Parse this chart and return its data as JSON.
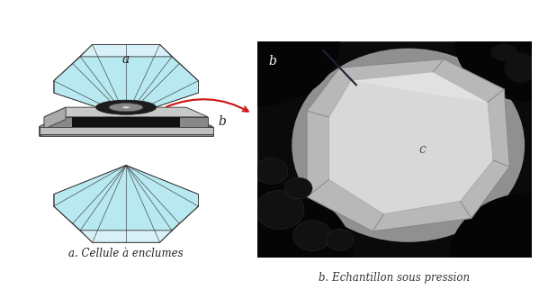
{
  "figsize": [
    6.09,
    3.32
  ],
  "dpi": 100,
  "bg_color": "#ffffff",
  "left_caption": "a. Cellule à enclumes",
  "right_caption": "b. Echantillon sous pression",
  "label_a": "a",
  "label_b": "b",
  "label_c": "c",
  "diamond_fill": "#b8e8f0",
  "diamond_fill_light": "#d8f0f8",
  "diamond_fill_dark": "#90ccd8",
  "diamond_edge": "#333333",
  "plate_top": "#c0c0c0",
  "plate_side": "#888888",
  "plate_front": "#a0a0a0",
  "gasket_dark": "#1a1a1a",
  "gasket_mid": "#555555",
  "gasket_light": "#aaaaaa",
  "arrow_color": "#cc1111",
  "photo_bg": "#111111",
  "caption_fontsize": 8.5,
  "label_fontsize": 10
}
